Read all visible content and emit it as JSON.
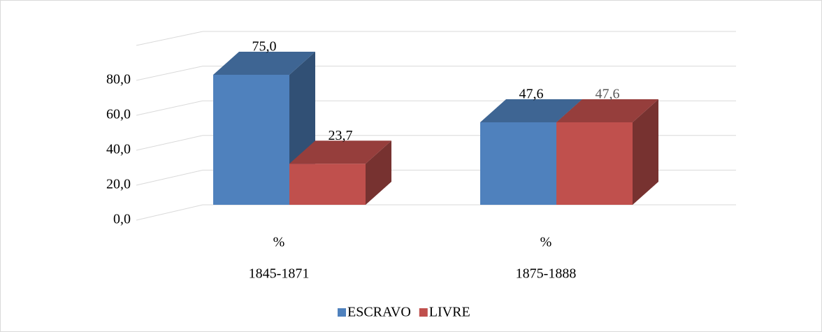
{
  "chart_data": {
    "type": "bar3d",
    "categories": [
      "1845-1871",
      "1875-1888"
    ],
    "category_sublabels": [
      "%",
      "%"
    ],
    "series": [
      {
        "name": "ESCRAVO",
        "color": "#4f81bd",
        "values": [
          75.0,
          47.6
        ],
        "value_labels": [
          "75,0",
          "47,6"
        ]
      },
      {
        "name": "LIVRE",
        "color": "#c0504d",
        "values": [
          23.7,
          47.6
        ],
        "value_labels": [
          "23,7",
          "47,6"
        ]
      }
    ],
    "ylim": [
      0,
      100
    ],
    "yticks": [
      {
        "value": 0,
        "label": "0,0"
      },
      {
        "value": 20,
        "label": "20,0"
      },
      {
        "value": 40,
        "label": "40,0"
      },
      {
        "value": 60,
        "label": "60,0"
      },
      {
        "value": 80,
        "label": "80,0"
      }
    ],
    "grid": true,
    "legend": "bottom"
  }
}
